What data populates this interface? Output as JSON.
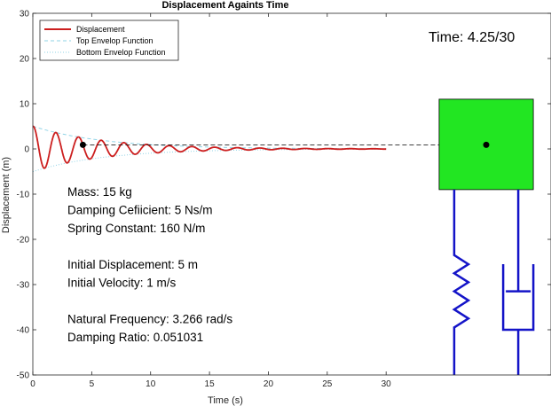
{
  "chart_data": {
    "type": "line",
    "title": "Displacement Againts Time",
    "xlabel": "Time (s)",
    "ylabel": "Displacement (m)",
    "xlim": [
      0,
      44
    ],
    "ylim": [
      -50,
      30
    ],
    "xticks": [
      0,
      5,
      10,
      15,
      20,
      25,
      30
    ],
    "yticks": [
      -50,
      -40,
      -30,
      -20,
      -10,
      0,
      10,
      20,
      30
    ],
    "grid": false,
    "legend_position": "top-left",
    "legend": [
      {
        "label": "Displacement",
        "style": "solid",
        "color": "#cc1f1f"
      },
      {
        "label": "Top Envelop Function",
        "style": "dashed",
        "color": "#8fd3e6"
      },
      {
        "label": "Bottom Envelop Function",
        "style": "dotted",
        "color": "#8fd3e6"
      }
    ],
    "model": {
      "mass_kg": 15,
      "damping_ns_per_m": 5,
      "spring_constant_n_per_m": 160,
      "initial_displacement_m": 5,
      "initial_velocity_m_per_s": 1,
      "natural_frequency_rad_per_s": 3.266,
      "damping_ratio": 0.051031
    },
    "time_range_s": [
      0,
      30
    ],
    "current_time_s": 4.25,
    "current_displacement_m": 0.9,
    "mass_block": {
      "x_range": [
        34.5,
        42.5
      ],
      "y_range": [
        -9,
        11
      ],
      "color": "#22e622"
    },
    "spring_damper_color": "#1414c8",
    "time_readout": "Time: 4.25/30",
    "info_lines": [
      "Mass: 15 kg",
      "Damping Cefiicient: 5 Ns/m",
      "Spring Constant: 160 N/m",
      "",
      "Initial Displacement: 5 m",
      "Initial Velocity: 1 m/s",
      "",
      "Natural Frequency: 3.266 rad/s",
      "Damping Ratio: 0.051031"
    ]
  }
}
